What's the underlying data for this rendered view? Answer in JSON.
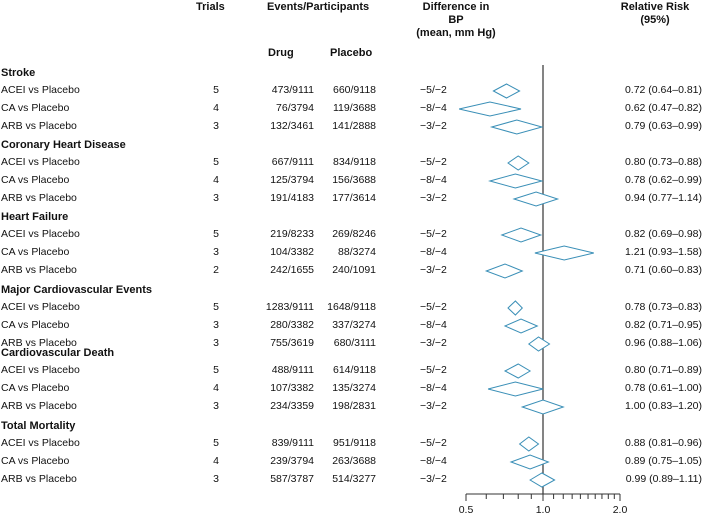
{
  "headers": {
    "trials": "Trials",
    "events": "Events/Participants",
    "bp": [
      "Difference in",
      "BP",
      "(mean, mm Hg)"
    ],
    "rr": [
      "Relative Risk",
      "(95%)"
    ],
    "drug": "Drug",
    "placebo": "Placebo"
  },
  "groups": [
    {
      "title": "Stroke",
      "rows": [
        {
          "label": "ACEI vs Placebo",
          "trials": "5",
          "drug": "473/9111",
          "placebo": "660/9118",
          "bp": "−5/−2",
          "rr_text": "0.72 (0.64–0.81)"
        },
        {
          "label": "CA vs Placebo",
          "trials": "4",
          "drug": "76/3794",
          "placebo": "119/3688",
          "bp": "−8/−4",
          "rr_text": "0.62 (0.47–0.82)"
        },
        {
          "label": "ARB vs Placebo",
          "trials": "3",
          "drug": "132/3461",
          "placebo": "141/2888",
          "bp": "−3/−2",
          "rr_text": "0.79 (0.63–0.99)"
        }
      ]
    },
    {
      "title": "Coronary Heart Disease",
      "rows": [
        {
          "label": "ACEI vs Placebo",
          "trials": "5",
          "drug": "667/9111",
          "placebo": "834/9118",
          "bp": "−5/−2",
          "rr_text": "0.80 (0.73–0.88)"
        },
        {
          "label": "CA vs Placebo",
          "trials": "4",
          "drug": "125/3794",
          "placebo": "156/3688",
          "bp": "−8/−4",
          "rr_text": "0.78 (0.62–0.99)"
        },
        {
          "label": "ARB vs Placebo",
          "trials": "3",
          "drug": "191/4183",
          "placebo": "177/3614",
          "bp": "−3/−2",
          "rr_text": "0.94 (0.77–1.14)"
        }
      ]
    },
    {
      "title": "Heart Failure",
      "rows": [
        {
          "label": "ACEI vs Placebo",
          "trials": "5",
          "drug": "219/8233",
          "placebo": "269/8246",
          "bp": "−5/−2",
          "rr_text": "0.82 (0.69–0.98)"
        },
        {
          "label": "CA vs Placebo",
          "trials": "3",
          "drug": "104/3382",
          "placebo": "88/3274",
          "bp": "−8/−4",
          "rr_text": "1.21 (0.93–1.58)"
        },
        {
          "label": "ARB vs Placebo",
          "trials": "2",
          "drug": "242/1655",
          "placebo": "240/1091",
          "bp": "−3/−2",
          "rr_text": "0.71 (0.60–0.83)"
        }
      ]
    },
    {
      "title": "Major Cardiovascular Events",
      "rows": [
        {
          "label": "ACEI vs Placebo",
          "trials": "5",
          "drug": "1283/9111",
          "placebo": "1648/9118",
          "bp": "−5/−2",
          "rr_text": "0.78 (0.73–0.83)"
        },
        {
          "label": "CA vs Placebo",
          "trials": "3",
          "drug": "280/3382",
          "placebo": "337/3274",
          "bp": "−8/−4",
          "rr_text": "0.82 (0.71–0.95)"
        },
        {
          "label": "ARB vs Placebo",
          "trials": "3",
          "drug": "755/3619",
          "placebo": "680/3111",
          "bp": "−3/−2",
          "rr_text": "0.96 (0.88–1.06)"
        }
      ]
    },
    {
      "title": "Cardiovascular Death",
      "rows": [
        {
          "label": "ACEI vs Placebo",
          "trials": "5",
          "drug": "488/9111",
          "placebo": "614/9118",
          "bp": "−5/−2",
          "rr_text": "0.80 (0.71–0.89)"
        },
        {
          "label": "CA vs Placebo",
          "trials": "4",
          "drug": "107/3382",
          "placebo": "135/3274",
          "bp": "−8/−4",
          "rr_text": "0.78 (0.61–1.00)"
        },
        {
          "label": "ARB vs Placebo",
          "trials": "3",
          "drug": "234/3359",
          "placebo": "198/2831",
          "bp": "−3/−2",
          "rr_text": "1.00 (0.83–1.20)"
        }
      ]
    },
    {
      "title": "Total Mortality",
      "rows": [
        {
          "label": "ACEI vs Placebo",
          "trials": "5",
          "drug": "839/9111",
          "placebo": "951/9118",
          "bp": "−5/−2",
          "rr_text": "0.88 (0.81–0.96)"
        },
        {
          "label": "CA vs Placebo",
          "trials": "4",
          "drug": "239/3794",
          "placebo": "263/3688",
          "bp": "−8/−4",
          "rr_text": "0.89 (0.75–1.05)"
        },
        {
          "label": "ARB vs Placebo",
          "trials": "3",
          "drug": "587/3787",
          "placebo": "514/3277",
          "bp": "−3/−2",
          "rr_text": "0.99 (0.89–1.11)"
        }
      ]
    }
  ],
  "chart_data": {
    "type": "forest",
    "scale": "log",
    "reference_line": 1.0,
    "xlim": [
      0.5,
      2.0
    ],
    "ticks": [
      0.5,
      1.0,
      2.0
    ],
    "tick_labels": [
      "0.5",
      "1.0",
      "2.0"
    ],
    "estimates": [
      [
        [
          0.72,
          0.64,
          0.81
        ],
        [
          0.62,
          0.47,
          0.82
        ],
        [
          0.79,
          0.63,
          0.99
        ]
      ],
      [
        [
          0.8,
          0.73,
          0.88
        ],
        [
          0.78,
          0.62,
          0.99
        ],
        [
          0.94,
          0.77,
          1.14
        ]
      ],
      [
        [
          0.82,
          0.69,
          0.98
        ],
        [
          1.21,
          0.93,
          1.58
        ],
        [
          0.71,
          0.6,
          0.83
        ]
      ],
      [
        [
          0.78,
          0.73,
          0.83
        ],
        [
          0.82,
          0.71,
          0.95
        ],
        [
          0.96,
          0.88,
          1.06
        ]
      ],
      [
        [
          0.8,
          0.71,
          0.89
        ],
        [
          0.78,
          0.61,
          1.0
        ],
        [
          1.0,
          0.83,
          1.2
        ]
      ],
      [
        [
          0.88,
          0.81,
          0.96
        ],
        [
          0.89,
          0.75,
          1.05
        ],
        [
          0.99,
          0.89,
          1.11
        ]
      ]
    ],
    "diamond_color": "#3a8fb7",
    "axis_color": "#333333"
  }
}
